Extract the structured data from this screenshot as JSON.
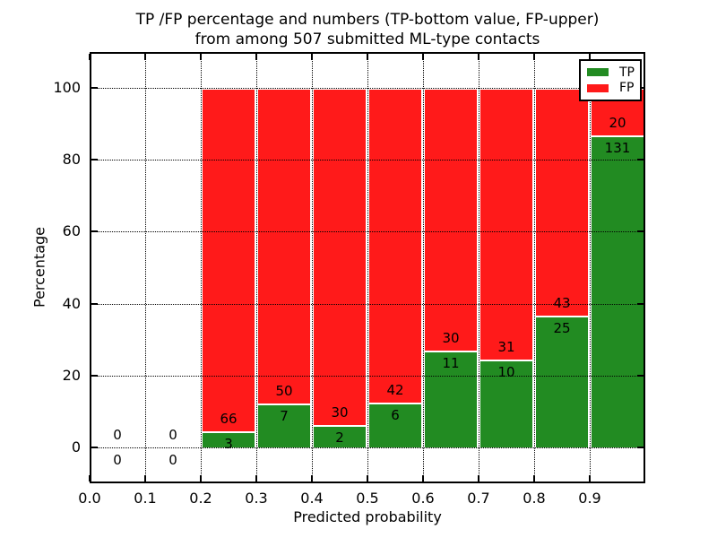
{
  "title": {
    "line1": "TP /FP percentage and numbers (TP-bottom value, FP-upper)",
    "line2": "from among 507 submitted ML-type contacts"
  },
  "axes": {
    "xlabel": "Predicted probability",
    "ylabel": "Percentage"
  },
  "legend": {
    "position": "upper right",
    "entries": [
      {
        "label": "TP",
        "color": "#228b22"
      },
      {
        "label": "FP",
        "color": "#ff1a1a"
      }
    ]
  },
  "colors": {
    "tp_green": "#228b22",
    "fp_red": "#ff1a1a",
    "grid": "#000000",
    "background": "#ffffff",
    "text": "#000000"
  },
  "chart_data": {
    "type": "bar",
    "stacked": true,
    "orientation": "vertical",
    "title": "TP /FP percentage and numbers (TP-bottom value, FP-upper)\nfrom among 507 submitted ML-type contacts",
    "xlabel": "Predicted probability",
    "ylabel": "Percentage",
    "xlim": [
      0.0,
      1.0
    ],
    "ylim": [
      -10,
      110
    ],
    "grid": "dotted black, both axes, drawn over bars",
    "legend_position": "upper right",
    "bin_width": 0.1,
    "bin_edges": [
      0.0,
      0.1,
      0.2,
      0.3,
      0.4,
      0.5,
      0.6,
      0.7,
      0.8,
      0.9,
      1.0
    ],
    "xticks": {
      "values": [
        0.0,
        0.1,
        0.2,
        0.3,
        0.4,
        0.5,
        0.6,
        0.7,
        0.8,
        0.9
      ],
      "labels": [
        "0.0",
        "0.1",
        "0.2",
        "0.3",
        "0.4",
        "0.5",
        "0.6",
        "0.7",
        "0.8",
        "0.9"
      ]
    },
    "yticks": {
      "values": [
        0,
        20,
        40,
        60,
        80,
        100
      ],
      "labels": [
        "0",
        "20",
        "40",
        "60",
        "80",
        "100"
      ]
    },
    "series": [
      {
        "name": "TP",
        "color": "#228b22",
        "counts": [
          0,
          0,
          3,
          7,
          2,
          6,
          11,
          10,
          25,
          131
        ]
      },
      {
        "name": "FP",
        "color": "#ff1a1a",
        "counts": [
          0,
          0,
          66,
          50,
          30,
          42,
          30,
          31,
          43,
          20
        ]
      }
    ],
    "tp_percent_of_bin": [
      null,
      null,
      4.35,
      12.28,
      6.25,
      12.5,
      26.83,
      24.39,
      36.76,
      86.75
    ],
    "bars_sum_to_percent": 100,
    "total_contacts": 507
  }
}
